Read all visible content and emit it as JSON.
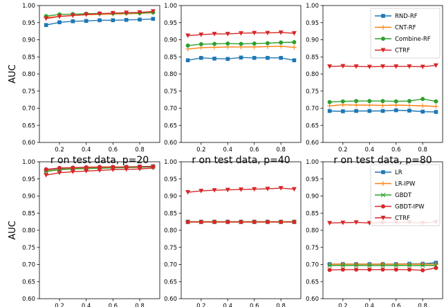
{
  "chart_data": [
    {
      "type": "line",
      "panel": "top-left",
      "xlabel": "r on test data, p=20",
      "ylabel": "AUC",
      "ylim": [
        0.6,
        1.0
      ],
      "x": [
        0.1,
        0.2,
        0.3,
        0.4,
        0.5,
        0.6,
        0.7,
        0.8,
        0.9
      ],
      "legend": false,
      "series": [
        {
          "name": "RND-RF",
          "values": [
            0.943,
            0.951,
            0.954,
            0.955,
            0.957,
            0.957,
            0.958,
            0.959,
            0.961
          ]
        },
        {
          "name": "CNT-RF",
          "values": [
            0.965,
            0.968,
            0.971,
            0.973,
            0.974,
            0.975,
            0.976,
            0.977,
            0.979
          ]
        },
        {
          "name": "Combine-RF",
          "values": [
            0.969,
            0.974,
            0.975,
            0.976,
            0.977,
            0.977,
            0.978,
            0.978,
            0.98
          ]
        },
        {
          "name": "CTRF",
          "values": [
            0.962,
            0.968,
            0.971,
            0.974,
            0.976,
            0.978,
            0.979,
            0.98,
            0.983
          ]
        }
      ]
    },
    {
      "type": "line",
      "panel": "top-middle",
      "xlabel": "r on test data, p=40",
      "ylabel": "",
      "ylim": [
        0.6,
        1.0
      ],
      "x": [
        0.1,
        0.2,
        0.3,
        0.4,
        0.5,
        0.6,
        0.7,
        0.8,
        0.9
      ],
      "legend": false,
      "series": [
        {
          "name": "RND-RF",
          "values": [
            0.84,
            0.847,
            0.845,
            0.844,
            0.848,
            0.847,
            0.847,
            0.847,
            0.84
          ]
        },
        {
          "name": "CNT-RF",
          "values": [
            0.873,
            0.877,
            0.878,
            0.879,
            0.879,
            0.879,
            0.88,
            0.881,
            0.878
          ]
        },
        {
          "name": "Combine-RF",
          "values": [
            0.883,
            0.887,
            0.888,
            0.889,
            0.888,
            0.889,
            0.89,
            0.892,
            0.893
          ]
        },
        {
          "name": "CTRF",
          "values": [
            0.912,
            0.915,
            0.917,
            0.917,
            0.919,
            0.92,
            0.92,
            0.921,
            0.919
          ]
        }
      ]
    },
    {
      "type": "line",
      "panel": "top-right",
      "xlabel": "r on test data, p=80",
      "ylabel": "",
      "ylim": [
        0.6,
        1.0
      ],
      "x": [
        0.1,
        0.2,
        0.3,
        0.4,
        0.5,
        0.6,
        0.7,
        0.8,
        0.9
      ],
      "legend": true,
      "legend_position": "top-right",
      "series": [
        {
          "name": "RND-RF",
          "values": [
            0.692,
            0.691,
            0.692,
            0.692,
            0.692,
            0.694,
            0.693,
            0.69,
            0.689
          ]
        },
        {
          "name": "CNT-RF",
          "values": [
            0.707,
            0.71,
            0.709,
            0.709,
            0.708,
            0.709,
            0.708,
            0.707,
            0.705
          ]
        },
        {
          "name": "Combine-RF",
          "values": [
            0.718,
            0.72,
            0.721,
            0.721,
            0.721,
            0.72,
            0.721,
            0.727,
            0.72
          ]
        },
        {
          "name": "CTRF",
          "values": [
            0.822,
            0.823,
            0.822,
            0.821,
            0.822,
            0.822,
            0.822,
            0.821,
            0.825
          ]
        }
      ]
    },
    {
      "type": "line",
      "panel": "bottom-left",
      "xlabel": "r on test data, p=20",
      "ylabel": "AUC",
      "ylim": [
        0.6,
        1.0
      ],
      "x": [
        0.1,
        0.2,
        0.3,
        0.4,
        0.5,
        0.6,
        0.7,
        0.8,
        0.9
      ],
      "legend": false,
      "series": [
        {
          "name": "LR",
          "values": [
            0.975,
            0.979,
            0.981,
            0.982,
            0.983,
            0.984,
            0.985,
            0.986,
            0.987
          ]
        },
        {
          "name": "LR-IPW",
          "values": [
            0.974,
            0.978,
            0.98,
            0.981,
            0.982,
            0.983,
            0.984,
            0.985,
            0.986
          ]
        },
        {
          "name": "GBDT",
          "values": [
            0.972,
            0.977,
            0.979,
            0.98,
            0.981,
            0.982,
            0.983,
            0.984,
            0.985
          ]
        },
        {
          "name": "GBDT-IPW",
          "values": [
            0.978,
            0.982,
            0.983,
            0.984,
            0.985,
            0.985,
            0.985,
            0.986,
            0.986
          ]
        },
        {
          "name": "CTRF",
          "values": [
            0.961,
            0.968,
            0.971,
            0.973,
            0.975,
            0.977,
            0.978,
            0.979,
            0.982
          ]
        }
      ]
    },
    {
      "type": "line",
      "panel": "bottom-middle",
      "xlabel": "r on test data, p=40",
      "ylabel": "",
      "ylim": [
        0.6,
        1.0
      ],
      "x": [
        0.1,
        0.2,
        0.3,
        0.4,
        0.5,
        0.6,
        0.7,
        0.8,
        0.9
      ],
      "legend": false,
      "series": [
        {
          "name": "LR",
          "values": [
            0.825,
            0.825,
            0.825,
            0.825,
            0.825,
            0.825,
            0.825,
            0.825,
            0.825
          ]
        },
        {
          "name": "LR-IPW",
          "values": [
            0.825,
            0.825,
            0.825,
            0.825,
            0.825,
            0.825,
            0.825,
            0.825,
            0.825
          ]
        },
        {
          "name": "GBDT",
          "values": [
            0.824,
            0.824,
            0.824,
            0.824,
            0.824,
            0.824,
            0.824,
            0.824,
            0.824
          ]
        },
        {
          "name": "GBDT-IPW",
          "values": [
            0.824,
            0.824,
            0.824,
            0.824,
            0.824,
            0.824,
            0.824,
            0.824,
            0.824
          ]
        },
        {
          "name": "CTRF",
          "values": [
            0.911,
            0.915,
            0.917,
            0.918,
            0.919,
            0.92,
            0.921,
            0.923,
            0.92
          ]
        }
      ]
    },
    {
      "type": "line",
      "panel": "bottom-right",
      "xlabel": "r on test data, p=80",
      "ylabel": "",
      "ylim": [
        0.6,
        1.0
      ],
      "x": [
        0.1,
        0.2,
        0.3,
        0.4,
        0.5,
        0.6,
        0.7,
        0.8,
        0.9
      ],
      "legend": true,
      "legend_position": "top-right",
      "series": [
        {
          "name": "LR",
          "values": [
            0.701,
            0.701,
            0.701,
            0.701,
            0.701,
            0.701,
            0.702,
            0.702,
            0.705
          ]
        },
        {
          "name": "LR-IPW",
          "values": [
            0.701,
            0.701,
            0.701,
            0.701,
            0.701,
            0.701,
            0.701,
            0.701,
            0.701
          ]
        },
        {
          "name": "GBDT",
          "values": [
            0.697,
            0.697,
            0.697,
            0.697,
            0.697,
            0.697,
            0.697,
            0.697,
            0.697
          ]
        },
        {
          "name": "GBDT-IPW",
          "values": [
            0.684,
            0.685,
            0.685,
            0.685,
            0.685,
            0.685,
            0.685,
            0.683,
            0.69
          ]
        },
        {
          "name": "CTRF",
          "values": [
            0.821,
            0.822,
            0.823,
            0.821,
            0.822,
            0.823,
            0.823,
            0.821,
            0.824
          ]
        }
      ]
    }
  ],
  "yticks": [
    "0.60",
    "0.65",
    "0.70",
    "0.75",
    "0.80",
    "0.85",
    "0.90",
    "0.95",
    "1.00"
  ],
  "xticks": [
    "0.2",
    "0.4",
    "0.6",
    "0.8"
  ],
  "series_styles": {
    "RND-RF": {
      "color": "#1f77b4",
      "marker": "square"
    },
    "CNT-RF": {
      "color": "#ff7f0e",
      "marker": "plus"
    },
    "Combine-RF": {
      "color": "#2ca02c",
      "marker": "circle"
    },
    "CTRF": {
      "color": "#d62728",
      "marker": "triangle-down"
    },
    "LR": {
      "color": "#1f77b4",
      "marker": "square"
    },
    "LR-IPW": {
      "color": "#ff7f0e",
      "marker": "plus"
    },
    "GBDT": {
      "color": "#2ca02c",
      "marker": "x"
    },
    "GBDT-IPW": {
      "color": "#d62728",
      "marker": "circle"
    }
  }
}
